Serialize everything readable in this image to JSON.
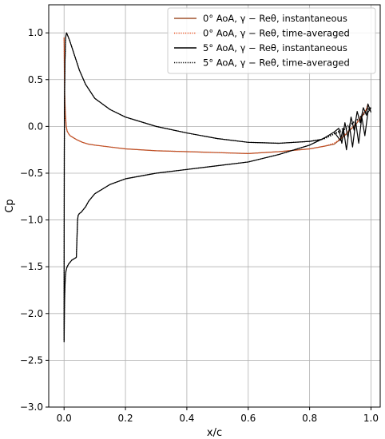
{
  "chart_data": {
    "type": "line",
    "xlabel": "x/c",
    "ylabel": "Cp",
    "xlim": [
      -0.05,
      1.03
    ],
    "ylim": [
      -3.0,
      1.3
    ],
    "xticks": [
      "0.0",
      "0.2",
      "0.4",
      "0.6",
      "0.8",
      "1.0"
    ],
    "yticks": [
      "−3.0",
      "−2.5",
      "−2.0",
      "−1.5",
      "−1.0",
      "−0.5",
      "0.0",
      "0.5",
      "1.0"
    ],
    "grid": true,
    "legend_position": "top-right",
    "series": [
      {
        "name": "0° AoA, γ − Reθ, instantaneous",
        "color": "#a0522d",
        "style": "solid",
        "x": [
          0.0,
          0.0005,
          0.001,
          0.002,
          0.004,
          0.007,
          0.01,
          0.015,
          0.02,
          0.03,
          0.04,
          0.06,
          0.08,
          0.1,
          0.15,
          0.2,
          0.3,
          0.4,
          0.5,
          0.6,
          0.7,
          0.8,
          0.85,
          0.88,
          0.9,
          0.92,
          0.95,
          0.97,
          0.985,
          0.99
        ],
        "y": [
          0.95,
          0.85,
          0.6,
          0.35,
          0.15,
          0.0,
          -0.05,
          -0.08,
          -0.1,
          -0.12,
          -0.14,
          -0.17,
          -0.19,
          -0.2,
          -0.22,
          -0.24,
          -0.26,
          -0.27,
          -0.28,
          -0.29,
          -0.27,
          -0.24,
          -0.21,
          -0.19,
          -0.14,
          -0.08,
          0.02,
          0.1,
          0.18,
          0.23
        ]
      },
      {
        "name": "0° AoA, γ − Reθ, time-averaged",
        "color": "#e85020",
        "style": "dotted",
        "x": [
          0.0,
          0.0005,
          0.001,
          0.002,
          0.004,
          0.007,
          0.01,
          0.015,
          0.02,
          0.03,
          0.04,
          0.06,
          0.08,
          0.1,
          0.15,
          0.2,
          0.3,
          0.4,
          0.5,
          0.6,
          0.7,
          0.8,
          0.85,
          0.88,
          0.9,
          0.92,
          0.95,
          0.97,
          0.985,
          0.99
        ],
        "y": [
          0.95,
          0.85,
          0.6,
          0.35,
          0.15,
          0.0,
          -0.05,
          -0.08,
          -0.1,
          -0.12,
          -0.14,
          -0.17,
          -0.19,
          -0.2,
          -0.22,
          -0.24,
          -0.26,
          -0.27,
          -0.28,
          -0.29,
          -0.27,
          -0.24,
          -0.21,
          -0.18,
          -0.13,
          -0.07,
          0.03,
          0.11,
          0.19,
          0.24
        ]
      },
      {
        "name": "5° AoA, γ − Reθ, instantaneous",
        "color": "#000000",
        "style": "solid",
        "x": [
          1.0,
          0.99,
          0.985,
          0.975,
          0.965,
          0.955,
          0.945,
          0.935,
          0.925,
          0.915,
          0.905,
          0.895,
          0.88,
          0.86,
          0.84,
          0.8,
          0.75,
          0.7,
          0.65,
          0.6,
          0.5,
          0.4,
          0.3,
          0.2,
          0.15,
          0.1,
          0.07,
          0.05,
          0.035,
          0.025,
          0.018,
          0.012,
          0.008,
          0.005,
          0.003,
          0.0015,
          0.0008,
          0.0003,
          0.0,
          0.0002,
          0.0005,
          0.001,
          0.0015,
          0.002,
          0.003,
          0.004,
          0.005,
          0.006,
          0.008,
          0.01,
          0.015,
          0.02,
          0.025,
          0.03,
          0.035,
          0.04,
          0.042,
          0.044,
          0.046,
          0.048,
          0.05,
          0.055,
          0.06,
          0.07,
          0.08,
          0.1,
          0.15,
          0.2,
          0.3,
          0.4,
          0.5,
          0.6,
          0.7,
          0.75,
          0.8,
          0.85,
          0.88,
          0.9,
          0.91,
          0.92,
          0.93,
          0.94,
          0.95,
          0.96,
          0.97,
          0.98,
          0.99,
          1.0
        ],
        "y": [
          0.15,
          0.24,
          0.12,
          0.2,
          0.04,
          0.16,
          -0.04,
          0.1,
          -0.12,
          0.04,
          -0.18,
          -0.02,
          -0.06,
          -0.1,
          -0.14,
          -0.16,
          -0.17,
          -0.18,
          -0.175,
          -0.17,
          -0.13,
          -0.07,
          0.0,
          0.1,
          0.18,
          0.3,
          0.45,
          0.6,
          0.75,
          0.85,
          0.92,
          0.97,
          1.0,
          0.95,
          0.7,
          0.3,
          -0.3,
          -1.2,
          -2.1,
          -2.3,
          -2.2,
          -2.0,
          -1.9,
          -1.8,
          -1.7,
          -1.62,
          -1.58,
          -1.55,
          -1.52,
          -1.5,
          -1.47,
          -1.45,
          -1.43,
          -1.42,
          -1.41,
          -1.4,
          -1.2,
          -1.0,
          -0.95,
          -0.94,
          -0.93,
          -0.92,
          -0.9,
          -0.86,
          -0.8,
          -0.72,
          -0.62,
          -0.56,
          -0.5,
          -0.46,
          -0.42,
          -0.38,
          -0.3,
          -0.25,
          -0.2,
          -0.12,
          -0.06,
          -0.15,
          -0.02,
          -0.25,
          0.0,
          -0.22,
          0.05,
          -0.18,
          0.1,
          -0.1,
          0.15,
          0.2
        ]
      },
      {
        "name": "5° AoA, γ − Reθ, time-averaged",
        "color": "#000000",
        "style": "dotted",
        "x": [
          1.0,
          0.99,
          0.97,
          0.95,
          0.93,
          0.91,
          0.89,
          0.87,
          0.85,
          0.8,
          0.75,
          0.7,
          0.65,
          0.6,
          0.5,
          0.4,
          0.3,
          0.2,
          0.15,
          0.1,
          0.07,
          0.05,
          0.035,
          0.025,
          0.018,
          0.012,
          0.008,
          0.005,
          0.003,
          0.0015,
          0.0008,
          0.0003,
          0.0,
          0.0002,
          0.0005,
          0.001,
          0.0015,
          0.002,
          0.003,
          0.004,
          0.005,
          0.006,
          0.008,
          0.01,
          0.015,
          0.02,
          0.025,
          0.03,
          0.035,
          0.04,
          0.042,
          0.044,
          0.046,
          0.048,
          0.05,
          0.055,
          0.06,
          0.07,
          0.08,
          0.1,
          0.15,
          0.2,
          0.3,
          0.4,
          0.5,
          0.6,
          0.7,
          0.75,
          0.8,
          0.85,
          0.88,
          0.9,
          0.92,
          0.94,
          0.96,
          0.98,
          1.0
        ],
        "y": [
          0.2,
          0.19,
          0.12,
          0.06,
          0.02,
          -0.02,
          -0.06,
          -0.1,
          -0.13,
          -0.16,
          -0.17,
          -0.18,
          -0.175,
          -0.17,
          -0.13,
          -0.07,
          0.0,
          0.1,
          0.18,
          0.3,
          0.45,
          0.6,
          0.75,
          0.85,
          0.92,
          0.97,
          1.0,
          0.95,
          0.7,
          0.3,
          -0.3,
          -1.2,
          -2.1,
          -2.3,
          -2.2,
          -2.0,
          -1.9,
          -1.8,
          -1.7,
          -1.62,
          -1.58,
          -1.55,
          -1.52,
          -1.5,
          -1.47,
          -1.45,
          -1.43,
          -1.42,
          -1.41,
          -1.4,
          -1.2,
          -1.0,
          -0.95,
          -0.94,
          -0.93,
          -0.92,
          -0.9,
          -0.86,
          -0.8,
          -0.72,
          -0.62,
          -0.56,
          -0.5,
          -0.46,
          -0.42,
          -0.38,
          -0.3,
          -0.25,
          -0.2,
          -0.12,
          -0.08,
          -0.06,
          -0.02,
          0.03,
          0.08,
          0.14,
          0.2
        ]
      }
    ]
  }
}
